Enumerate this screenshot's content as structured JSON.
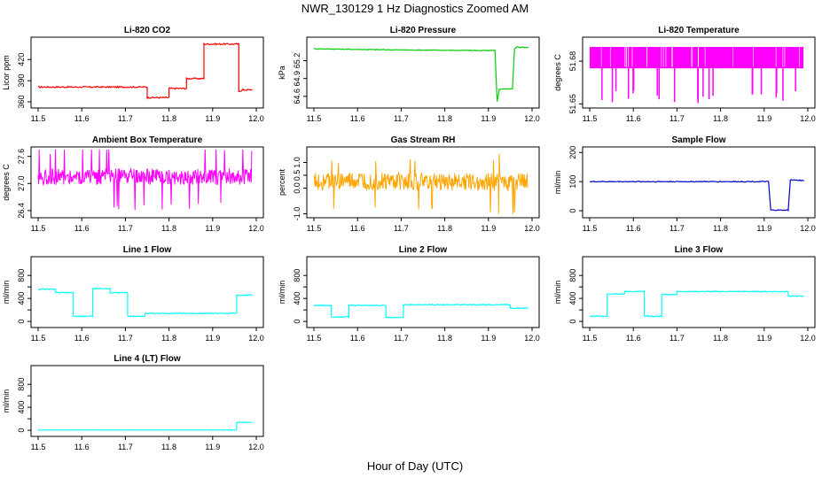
{
  "figure": {
    "title": "NWR_130129  1 Hz Diagnostics Zoomed AM",
    "xlabel": "Hour of Day (UTC)"
  },
  "chart_data": [
    {
      "type": "line",
      "title": "Li-820 CO2",
      "ylabel": "Licor ppm",
      "color": "#ff0000",
      "xlim": [
        11.5,
        12.0
      ],
      "ylim": [
        355,
        448
      ],
      "yticks": [
        360,
        390,
        420
      ],
      "ytick_labels": [
        "360",
        "390",
        "420"
      ],
      "xticks": [
        11.5,
        11.6,
        11.7,
        11.8,
        11.9,
        12.0
      ],
      "x": [
        11.5,
        11.75,
        11.75,
        11.8,
        11.8,
        11.84,
        11.84,
        11.88,
        11.88,
        11.96,
        11.96,
        11.97,
        11.99
      ],
      "y": [
        381,
        381,
        366,
        366,
        379,
        379,
        393,
        393,
        442,
        442,
        375,
        377,
        377
      ]
    },
    {
      "type": "line",
      "title": "Li-820 Pressure",
      "ylabel": "kPa",
      "color": "#00cc00",
      "xlim": [
        11.5,
        12.0
      ],
      "ylim": [
        64.45,
        65.55
      ],
      "yticks": [
        64.6,
        64.9,
        65.2
      ],
      "ytick_labels": [
        "64.6",
        "64.9",
        "65.2"
      ],
      "xticks": [
        11.5,
        11.6,
        11.7,
        11.8,
        11.9,
        12.0
      ],
      "x": [
        11.5,
        11.7,
        11.9,
        11.915,
        11.92,
        11.925,
        11.955,
        11.96,
        11.965,
        11.99
      ],
      "y": [
        65.4,
        65.38,
        65.37,
        65.37,
        64.52,
        64.72,
        64.73,
        65.4,
        65.43,
        65.42
      ]
    },
    {
      "type": "line",
      "title": "Li-820 Temperature",
      "ylabel": "degrees C",
      "color": "#ff00ff",
      "xlim": [
        11.5,
        12.0
      ],
      "ylim": [
        51.649,
        51.695
      ],
      "yticks": [
        51.65,
        51.68
      ],
      "ytick_labels": [
        "51.65",
        "51.68"
      ],
      "xticks": [
        11.5,
        11.6,
        11.7,
        11.8,
        11.9,
        12.0
      ],
      "x": [
        11.5,
        11.99
      ],
      "y": [
        51.69,
        51.675
      ]
    },
    {
      "type": "line",
      "title": "Ambient Box Temperature",
      "ylabel": "degrees C",
      "color": "#ff00ff",
      "xlim": [
        11.5,
        12.0
      ],
      "ylim": [
        26.3,
        27.75
      ],
      "yticks": [
        26.4,
        27.0,
        27.6
      ],
      "ytick_labels": [
        "26.4",
        "27.0",
        "27.6"
      ],
      "xticks": [
        11.5,
        11.6,
        11.7,
        11.8,
        11.9,
        12.0
      ],
      "x": [
        11.5,
        11.99
      ],
      "y": [
        27.15,
        27.15
      ]
    },
    {
      "type": "line",
      "title": "Gas Stream RH",
      "ylabel": "percent",
      "color": "#ffa500",
      "xlim": [
        11.5,
        12.0
      ],
      "ylim": [
        -1.05,
        1.5
      ],
      "yticks": [
        -1.0,
        0.0,
        0.5,
        1.0
      ],
      "ytick_labels": [
        "-1.0",
        "0.0",
        "0.5",
        "1.0"
      ],
      "xticks": [
        11.5,
        11.6,
        11.7,
        11.8,
        11.9,
        12.0
      ],
      "x": [
        11.5,
        11.99
      ],
      "y": [
        0.25,
        0.25
      ]
    },
    {
      "type": "line",
      "title": "Sample Flow",
      "ylabel": "ml/min",
      "color": "#0000cc",
      "xlim": [
        11.5,
        12.0
      ],
      "ylim": [
        -15,
        210
      ],
      "yticks": [
        0,
        100,
        200
      ],
      "ytick_labels": [
        "0",
        "100",
        "200"
      ],
      "xticks": [
        11.5,
        11.6,
        11.7,
        11.8,
        11.9,
        12.0
      ],
      "x": [
        11.5,
        11.91,
        11.915,
        11.955,
        11.96,
        11.99
      ],
      "y": [
        100,
        100,
        2,
        2,
        106,
        104
      ]
    },
    {
      "type": "line",
      "title": "Line 1 Flow",
      "ylabel": "ml/min",
      "color": "#00ffff",
      "xlim": [
        11.5,
        12.0
      ],
      "ylim": [
        -60,
        1080
      ],
      "yticks": [
        0,
        200,
        400,
        600,
        800
      ],
      "ytick_labels": [
        "0",
        "400",
        "800"
      ],
      "xticks": [
        11.5,
        11.6,
        11.7,
        11.8,
        11.9,
        12.0
      ],
      "x": [
        11.5,
        11.54,
        11.54,
        11.58,
        11.58,
        11.625,
        11.625,
        11.665,
        11.665,
        11.705,
        11.705,
        11.745,
        11.745,
        11.955,
        11.955,
        11.99
      ],
      "y": [
        560,
        560,
        500,
        500,
        90,
        90,
        570,
        570,
        500,
        500,
        90,
        90,
        140,
        140,
        450,
        460
      ]
    },
    {
      "type": "line",
      "title": "Line 2 Flow",
      "ylabel": "ml/min",
      "color": "#00ffff",
      "xlim": [
        11.5,
        12.0
      ],
      "ylim": [
        -60,
        1080
      ],
      "yticks": [
        0,
        200,
        400,
        600,
        800
      ],
      "ytick_labels": [
        "0",
        "400",
        "800"
      ],
      "xticks": [
        11.5,
        11.6,
        11.7,
        11.8,
        11.9,
        12.0
      ],
      "x": [
        11.5,
        11.54,
        11.54,
        11.58,
        11.58,
        11.665,
        11.665,
        11.705,
        11.705,
        11.95,
        11.95,
        11.99
      ],
      "y": [
        280,
        280,
        80,
        80,
        280,
        280,
        70,
        70,
        290,
        290,
        230,
        230
      ]
    },
    {
      "type": "line",
      "title": "Line 3 Flow",
      "ylabel": "ml/min",
      "color": "#00ffff",
      "xlim": [
        11.5,
        12.0
      ],
      "ylim": [
        -60,
        1080
      ],
      "yticks": [
        0,
        200,
        400,
        600,
        800
      ],
      "ytick_labels": [
        "0",
        "400",
        "800"
      ],
      "xticks": [
        11.5,
        11.6,
        11.7,
        11.8,
        11.9,
        12.0
      ],
      "x": [
        11.5,
        11.54,
        11.54,
        11.58,
        11.58,
        11.625,
        11.625,
        11.665,
        11.665,
        11.7,
        11.7,
        11.955,
        11.955,
        11.99
      ],
      "y": [
        90,
        90,
        480,
        480,
        520,
        520,
        90,
        90,
        470,
        470,
        520,
        520,
        440,
        440
      ]
    },
    {
      "type": "line",
      "title": "Line 4 (LT) Flow",
      "ylabel": "ml/min",
      "color": "#00ffff",
      "xlim": [
        11.5,
        12.0
      ],
      "ylim": [
        -60,
        1080
      ],
      "yticks": [
        0,
        200,
        400,
        600,
        800
      ],
      "ytick_labels": [
        "0",
        "400",
        "800"
      ],
      "xticks": [
        11.5,
        11.6,
        11.7,
        11.8,
        11.9,
        12.0
      ],
      "x": [
        11.5,
        11.955,
        11.955,
        11.96,
        11.99
      ],
      "y": [
        5,
        5,
        130,
        140,
        135
      ]
    }
  ]
}
